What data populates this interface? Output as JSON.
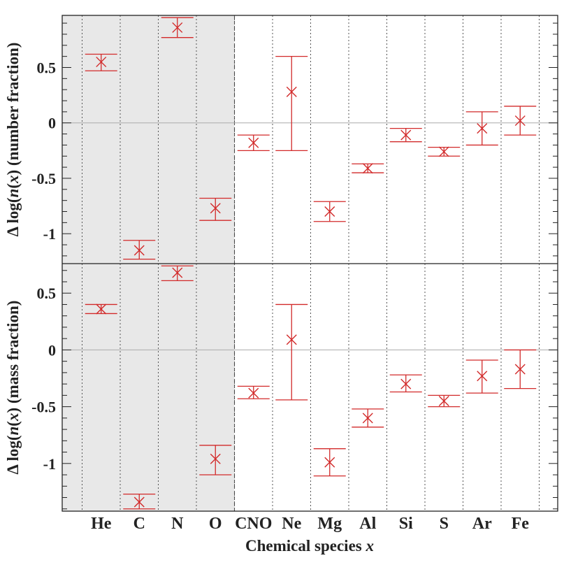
{
  "chart_data": {
    "type": "scatter",
    "xlabel": "Chemical species x",
    "categories": [
      "He",
      "C",
      "N",
      "O",
      "CNO",
      "Ne",
      "Mg",
      "Al",
      "Si",
      "S",
      "Ar",
      "Fe"
    ],
    "shaded_categories": [
      "He",
      "C",
      "N",
      "O"
    ],
    "colors": {
      "marker": "#d22a2a",
      "shade": "#e8e8e8",
      "zero_line": "#aaaaaa",
      "frame": "#222222"
    },
    "panels": [
      {
        "ylabel": "Δ log(n(x)) (number fraction)",
        "ylim": [
          -1.27,
          0.97
        ],
        "yticks": [
          0.5,
          0,
          -0.5,
          -1
        ],
        "ytick_labels": [
          "0.5",
          "0",
          "-0.5",
          "-1"
        ],
        "points": [
          {
            "category": "He",
            "y": 0.55,
            "lo": 0.47,
            "hi": 0.62
          },
          {
            "category": "C",
            "y": -1.15,
            "lo": -1.23,
            "hi": -1.06
          },
          {
            "category": "N",
            "y": 0.86,
            "lo": 0.77,
            "hi": 0.95
          },
          {
            "category": "O",
            "y": -0.77,
            "lo": -0.88,
            "hi": -0.68
          },
          {
            "category": "CNO",
            "y": -0.18,
            "lo": -0.25,
            "hi": -0.11
          },
          {
            "category": "Ne",
            "y": 0.28,
            "lo": -0.25,
            "hi": 0.6
          },
          {
            "category": "Mg",
            "y": -0.8,
            "lo": -0.89,
            "hi": -0.71
          },
          {
            "category": "Al",
            "y": -0.41,
            "lo": -0.45,
            "hi": -0.37
          },
          {
            "category": "Si",
            "y": -0.11,
            "lo": -0.17,
            "hi": -0.05
          },
          {
            "category": "S",
            "y": -0.26,
            "lo": -0.3,
            "hi": -0.22
          },
          {
            "category": "Ar",
            "y": -0.05,
            "lo": -0.2,
            "hi": 0.1
          },
          {
            "category": "Fe",
            "y": 0.02,
            "lo": -0.11,
            "hi": 0.15
          }
        ]
      },
      {
        "ylabel": "Δ log(n(x)) (mass fraction)",
        "ylim": [
          -1.42,
          0.76
        ],
        "yticks": [
          0.5,
          0,
          -0.5,
          -1
        ],
        "ytick_labels": [
          "0.5",
          "0",
          "-0.5",
          "-1"
        ],
        "points": [
          {
            "category": "He",
            "y": 0.36,
            "lo": 0.32,
            "hi": 0.4
          },
          {
            "category": "C",
            "y": -1.34,
            "lo": -1.4,
            "hi": -1.27
          },
          {
            "category": "N",
            "y": 0.68,
            "lo": 0.61,
            "hi": 0.74
          },
          {
            "category": "O",
            "y": -0.96,
            "lo": -1.1,
            "hi": -0.84
          },
          {
            "category": "CNO",
            "y": -0.38,
            "lo": -0.43,
            "hi": -0.32
          },
          {
            "category": "Ne",
            "y": 0.09,
            "lo": -0.44,
            "hi": 0.4
          },
          {
            "category": "Mg",
            "y": -0.99,
            "lo": -1.11,
            "hi": -0.87
          },
          {
            "category": "Al",
            "y": -0.6,
            "lo": -0.68,
            "hi": -0.52
          },
          {
            "category": "Si",
            "y": -0.3,
            "lo": -0.37,
            "hi": -0.22
          },
          {
            "category": "S",
            "y": -0.45,
            "lo": -0.5,
            "hi": -0.4
          },
          {
            "category": "Ar",
            "y": -0.23,
            "lo": -0.38,
            "hi": -0.09
          },
          {
            "category": "Fe",
            "y": -0.17,
            "lo": -0.34,
            "hi": 0.0
          }
        ]
      }
    ]
  }
}
